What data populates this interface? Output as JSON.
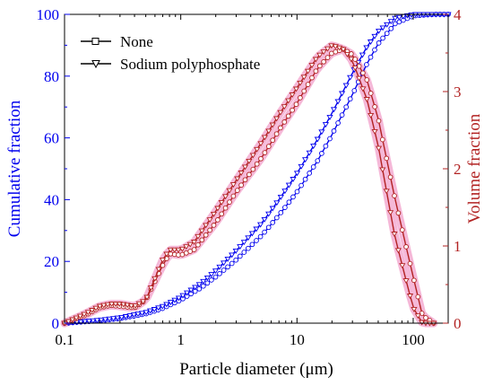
{
  "chart_data": {
    "type": "line",
    "xlabel": "Particle diameter (μm)",
    "ylabel_left": "Cumulative fraction",
    "ylabel_right": "Volume fraction",
    "xscale": "log",
    "xlim": [
      0.1,
      200
    ],
    "ylim_left": [
      0,
      100
    ],
    "ylim_right": [
      0,
      4
    ],
    "x_ticks": [
      0.1,
      1,
      10,
      100
    ],
    "x_tick_labels": [
      "0.1",
      "1",
      "10",
      "100"
    ],
    "y_left_ticks": [
      0,
      20,
      40,
      60,
      80,
      100
    ],
    "y_left_tick_labels": [
      "0",
      "20",
      "40",
      "60",
      "80",
      "100"
    ],
    "y_right_ticks": [
      0,
      1,
      2,
      3,
      4
    ],
    "y_right_tick_labels": [
      "0",
      "1",
      "2",
      "3",
      "4"
    ],
    "legend_position": "top-left",
    "grid": false,
    "colors": {
      "cumulative": "#0000ee",
      "volume": "#b22222",
      "halo": "#f5b8d8",
      "axis_left": "#0000ee",
      "axis_right": "#b22222"
    },
    "series": [
      {
        "name": "None",
        "marker": "circle",
        "axis": "left",
        "x": [
          0.1,
          0.2,
          0.3,
          0.5,
          0.7,
          1,
          1.5,
          2,
          3,
          5,
          7,
          10,
          15,
          20,
          30,
          40,
          50,
          70,
          100,
          150,
          200
        ],
        "values": [
          0,
          0.8,
          1.5,
          3,
          4.8,
          7.5,
          11.5,
          15,
          20.5,
          28.5,
          35,
          42.5,
          52.5,
          61,
          74,
          84,
          90.5,
          97,
          99.5,
          100,
          100
        ]
      },
      {
        "name": "Sodium polyphosphate",
        "marker": "triangle",
        "axis": "left",
        "x": [
          0.1,
          0.2,
          0.3,
          0.5,
          0.7,
          1,
          1.5,
          2,
          3,
          5,
          7,
          10,
          15,
          20,
          30,
          40,
          50,
          70,
          100,
          150,
          200
        ],
        "values": [
          0,
          1,
          1.8,
          3.5,
          5.5,
          8.5,
          13,
          17,
          23.5,
          32.5,
          40,
          48.5,
          59.5,
          68,
          81,
          89.5,
          94.5,
          98.8,
          100,
          100,
          100
        ]
      },
      {
        "name": "None",
        "marker": "circle",
        "axis": "right",
        "x": [
          0.1,
          0.15,
          0.2,
          0.25,
          0.3,
          0.4,
          0.5,
          0.7,
          0.8,
          1,
          1.3,
          2,
          3,
          5,
          7,
          10,
          15,
          20,
          25,
          30,
          40,
          50,
          70,
          100,
          120,
          150
        ],
        "values": [
          0,
          0.1,
          0.2,
          0.23,
          0.22,
          0.2,
          0.3,
          0.75,
          0.9,
          0.88,
          0.95,
          1.3,
          1.7,
          2.15,
          2.5,
          2.85,
          3.3,
          3.5,
          3.55,
          3.48,
          3.15,
          2.65,
          1.6,
          0.6,
          0.1,
          0
        ]
      },
      {
        "name": "Sodium polyphosphate",
        "marker": "triangle",
        "axis": "right",
        "x": [
          0.1,
          0.15,
          0.2,
          0.25,
          0.3,
          0.4,
          0.5,
          0.7,
          0.8,
          1,
          1.3,
          2,
          3,
          5,
          7,
          10,
          15,
          20,
          25,
          30,
          40,
          50,
          70,
          100,
          120,
          150
        ],
        "values": [
          0,
          0.12,
          0.22,
          0.25,
          0.25,
          0.22,
          0.3,
          0.82,
          0.95,
          0.95,
          1.05,
          1.45,
          1.85,
          2.35,
          2.7,
          3.05,
          3.45,
          3.6,
          3.55,
          3.4,
          2.9,
          2.3,
          1.1,
          0.2,
          0,
          0
        ]
      }
    ]
  }
}
